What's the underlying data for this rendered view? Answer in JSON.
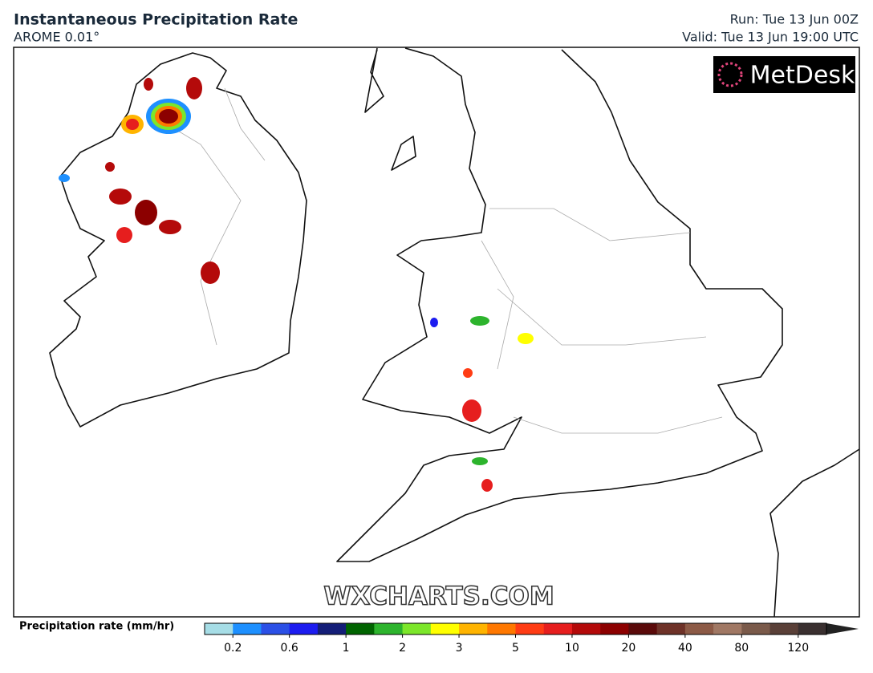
{
  "header": {
    "title": "Instantaneous Precipitation Rate",
    "model": "AROME 0.01°",
    "run": "Run: Tue 13 Jun 00Z",
    "valid": "Valid: Tue 13 Jun 19:00 UTC"
  },
  "logo": "MetDesk",
  "watermark": "WXCHARTS.COM",
  "legend": {
    "label": "Precipitation rate (mm/hr)",
    "colors": [
      "#a6dde6",
      "#1e90ff",
      "#2b50e6",
      "#1c1cf0",
      "#141e78",
      "#006400",
      "#2db42d",
      "#7ce62a",
      "#ffff00",
      "#ffb400",
      "#ff7800",
      "#ff3c14",
      "#e61e1e",
      "#b40a0a",
      "#8c0000",
      "#5a0a0a",
      "#6e3228",
      "#8c5a46",
      "#a07864",
      "#7a5a4a",
      "#5a4038",
      "#3a3030",
      "#222222"
    ],
    "ticks": [
      0.2,
      0.6,
      1,
      2,
      3,
      5,
      10,
      20,
      40,
      80,
      120
    ]
  }
}
